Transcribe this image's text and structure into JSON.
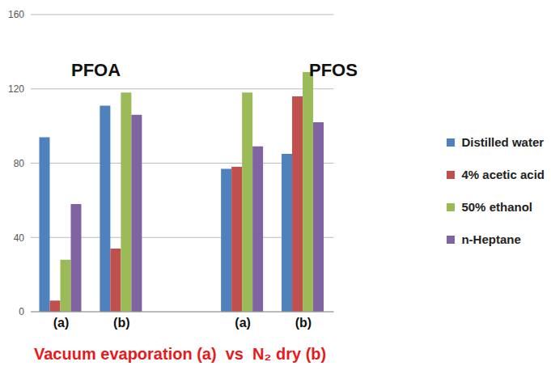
{
  "chart_data": {
    "type": "bar",
    "categories": [
      "(a)",
      "(b)",
      null,
      "(a)",
      "(b)"
    ],
    "series": [
      {
        "name": "Distilled water",
        "color": "#4f81bd",
        "values": [
          94,
          111,
          null,
          77,
          85
        ]
      },
      {
        "name": "4% acetic acid",
        "color": "#c0504d",
        "values": [
          6,
          34,
          null,
          78,
          116
        ]
      },
      {
        "name": "50% ethanol",
        "color": "#9bbb59",
        "values": [
          28,
          118,
          null,
          118,
          129
        ]
      },
      {
        "name": "n-Heptane",
        "color": "#8064a2",
        "values": [
          58,
          106,
          null,
          89,
          102
        ]
      }
    ],
    "ylim": [
      0,
      160
    ],
    "yticks": [
      0,
      40,
      80,
      120,
      160
    ],
    "grid": true,
    "legend": "right",
    "annotations": [
      "PFOA",
      "PFOS"
    ],
    "x_label": "Vacuum evaporation (a)  vs  N₂ dry (b)"
  }
}
